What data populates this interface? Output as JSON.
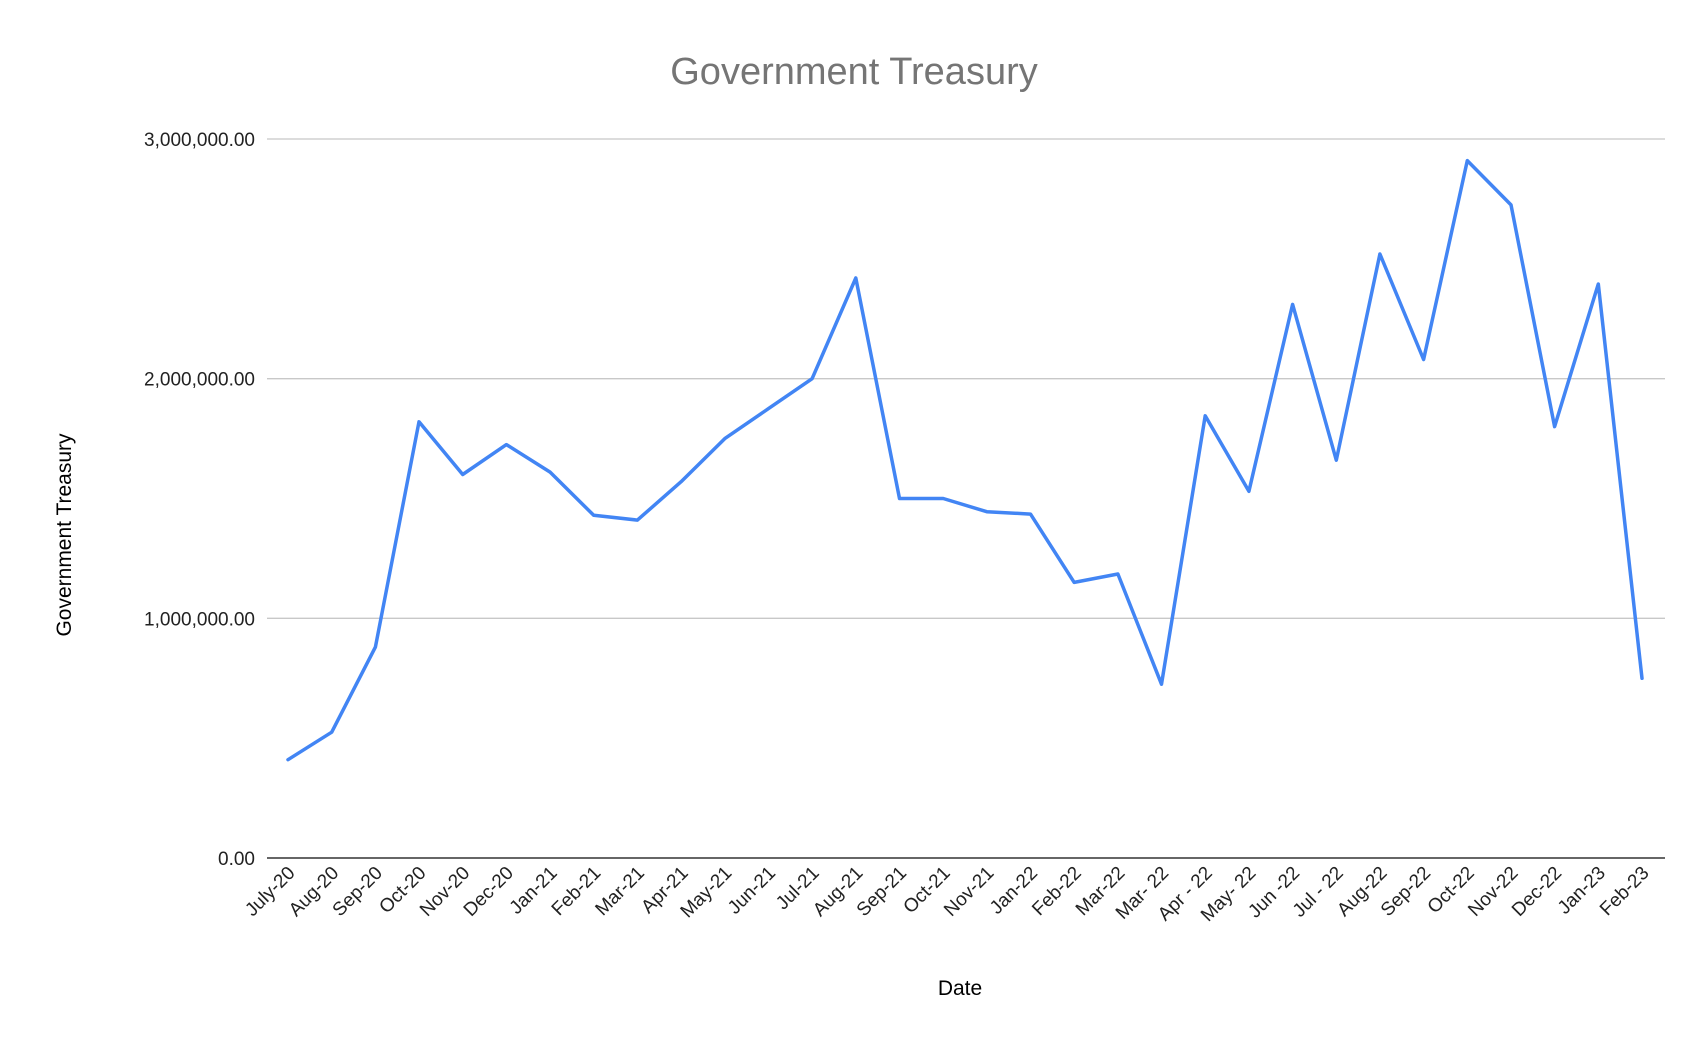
{
  "chart_data": {
    "type": "line",
    "title": "Government Treasury",
    "xlabel": "Date",
    "ylabel": "Government Treasury",
    "categories": [
      "July-20",
      "Aug-20",
      "Sep-20",
      "Oct-20",
      "Nov-20",
      "Dec-20",
      "Jan-21",
      "Feb-21",
      "Mar-21",
      "Apr-21",
      "May-21",
      "Jun-21",
      "Jul-21",
      "Aug-21",
      "Sep-21",
      "Oct-21",
      "Nov-21",
      "Jan-22",
      "Feb-22",
      "Mar-22",
      "Mar- 22",
      "Apr - 22",
      "May- 22",
      "Jun -22",
      "Jul - 22",
      "Aug-22",
      "Sep-22",
      "Oct-22",
      "Nov-22",
      "Dec-22",
      "Jan-23",
      "Feb-23"
    ],
    "series": [
      {
        "values": [
          410000,
          525000,
          880000,
          1820000,
          1600000,
          1725000,
          1610000,
          1430000,
          1410000,
          1570000,
          1750000,
          1875000,
          2000000,
          2420000,
          1500000,
          1500000,
          1445000,
          1435000,
          1150000,
          1185000,
          725000,
          1845000,
          1530000,
          2310000,
          1660000,
          2520000,
          2080000,
          2910000,
          2725000,
          1800000,
          2395000,
          750000
        ],
        "color": "#4285f4"
      }
    ],
    "ylim": [
      0,
      3000000
    ],
    "yticks": [
      0,
      1000000,
      2000000,
      3000000
    ],
    "ytick_labels": [
      "0.00",
      "1,000,000.00",
      "2,000,000.00",
      "3,000,000.00"
    ],
    "grid": true,
    "legend": "none"
  }
}
